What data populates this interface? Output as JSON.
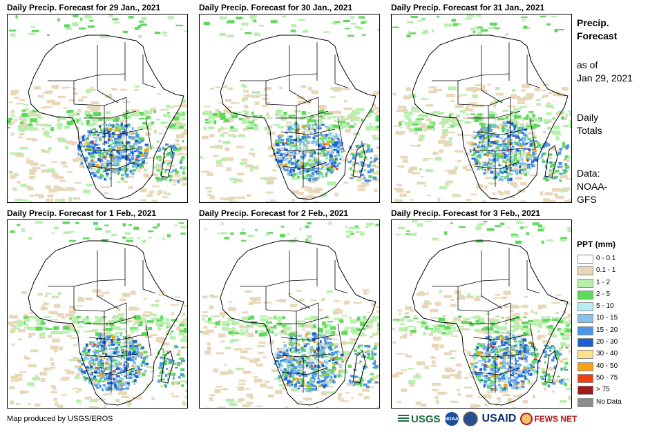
{
  "panels": [
    {
      "title": "Daily Precip. Forecast for 29 Jan., 2021"
    },
    {
      "title": "Daily Precip. Forecast for 30 Jan., 2021"
    },
    {
      "title": "Daily Precip. Forecast for 31 Jan., 2021"
    },
    {
      "title": "Daily Precip. Forecast for 1 Feb., 2021"
    },
    {
      "title": "Daily Precip. Forecast for 2 Feb., 2021"
    },
    {
      "title": "Daily Precip. Forecast for 3 Feb., 2021"
    }
  ],
  "side": {
    "title_line1": "Precip.",
    "title_line2": "Forecast",
    "asof_line1": "as of",
    "asof_line2": "Jan 29, 2021",
    "totals_line1": "Daily",
    "totals_line2": "Totals",
    "data_line1": "Data:",
    "data_line2": "NOAA-",
    "data_line3": "GFS"
  },
  "legend": {
    "title": "PPT (mm)",
    "items": [
      {
        "label": "0 - 0.1",
        "color": "#ffffff"
      },
      {
        "label": "0.1 - 1",
        "color": "#e8d7b8"
      },
      {
        "label": "1 - 2",
        "color": "#b6f0ac"
      },
      {
        "label": "2 - 5",
        "color": "#5fd85c"
      },
      {
        "label": "5 - 10",
        "color": "#b6eef4"
      },
      {
        "label": "10 - 15",
        "color": "#8cc0ec"
      },
      {
        "label": "15 - 20",
        "color": "#4f95e6"
      },
      {
        "label": "20 - 30",
        "color": "#1f5fd6"
      },
      {
        "label": "30 - 40",
        "color": "#fde48a"
      },
      {
        "label": "40 - 50",
        "color": "#f7a11a"
      },
      {
        "label": "50 - 75",
        "color": "#f04010"
      },
      {
        "label": "> 75",
        "color": "#a3181a"
      },
      {
        "label": "No Data",
        "color": "#8c8c8c"
      }
    ]
  },
  "credit": "Map produced by USGS/EROS",
  "logos": {
    "usgs": "USGS",
    "noaa": "NOAA",
    "usaid": "USAID",
    "fews": "FEWS NET"
  }
}
